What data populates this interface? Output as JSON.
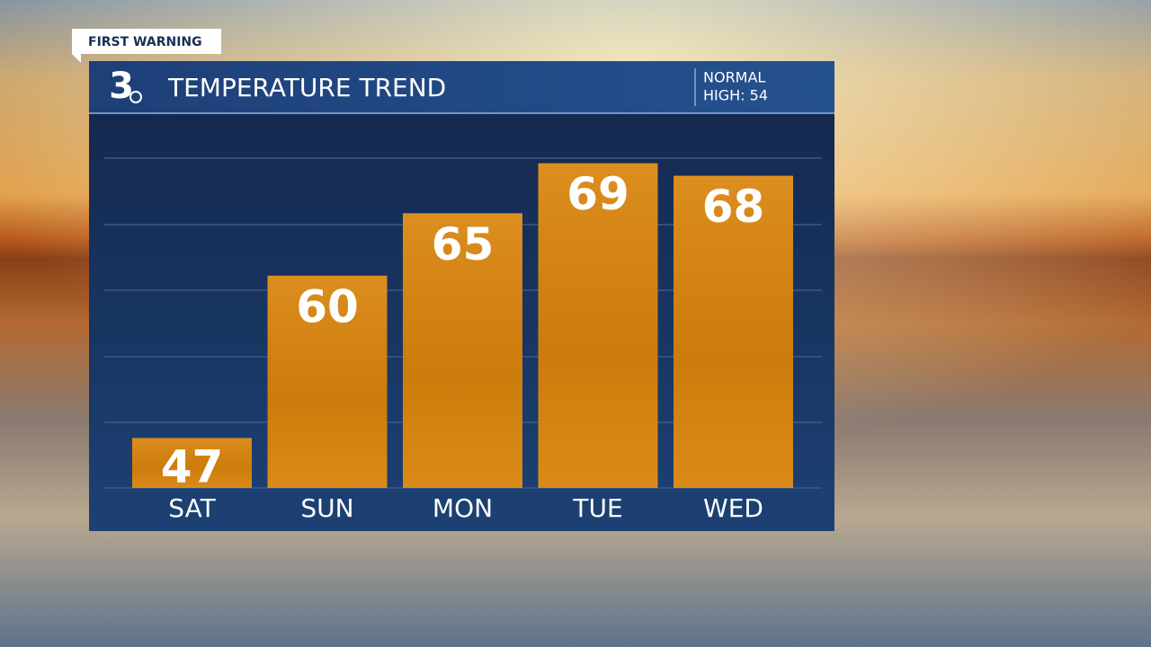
{
  "header": {
    "badge": "FIRST WARNING",
    "logo": "3",
    "normal_label": "NORMAL",
    "normal_value": "HIGH: 54"
  },
  "chart_data": {
    "type": "bar",
    "title": "TEMPERATURE TREND",
    "categories": [
      "SAT",
      "SUN",
      "MON",
      "TUE",
      "WED"
    ],
    "values": [
      47,
      60,
      65,
      69,
      68
    ],
    "color": "#d9840c",
    "ylim": [
      43,
      72
    ]
  }
}
